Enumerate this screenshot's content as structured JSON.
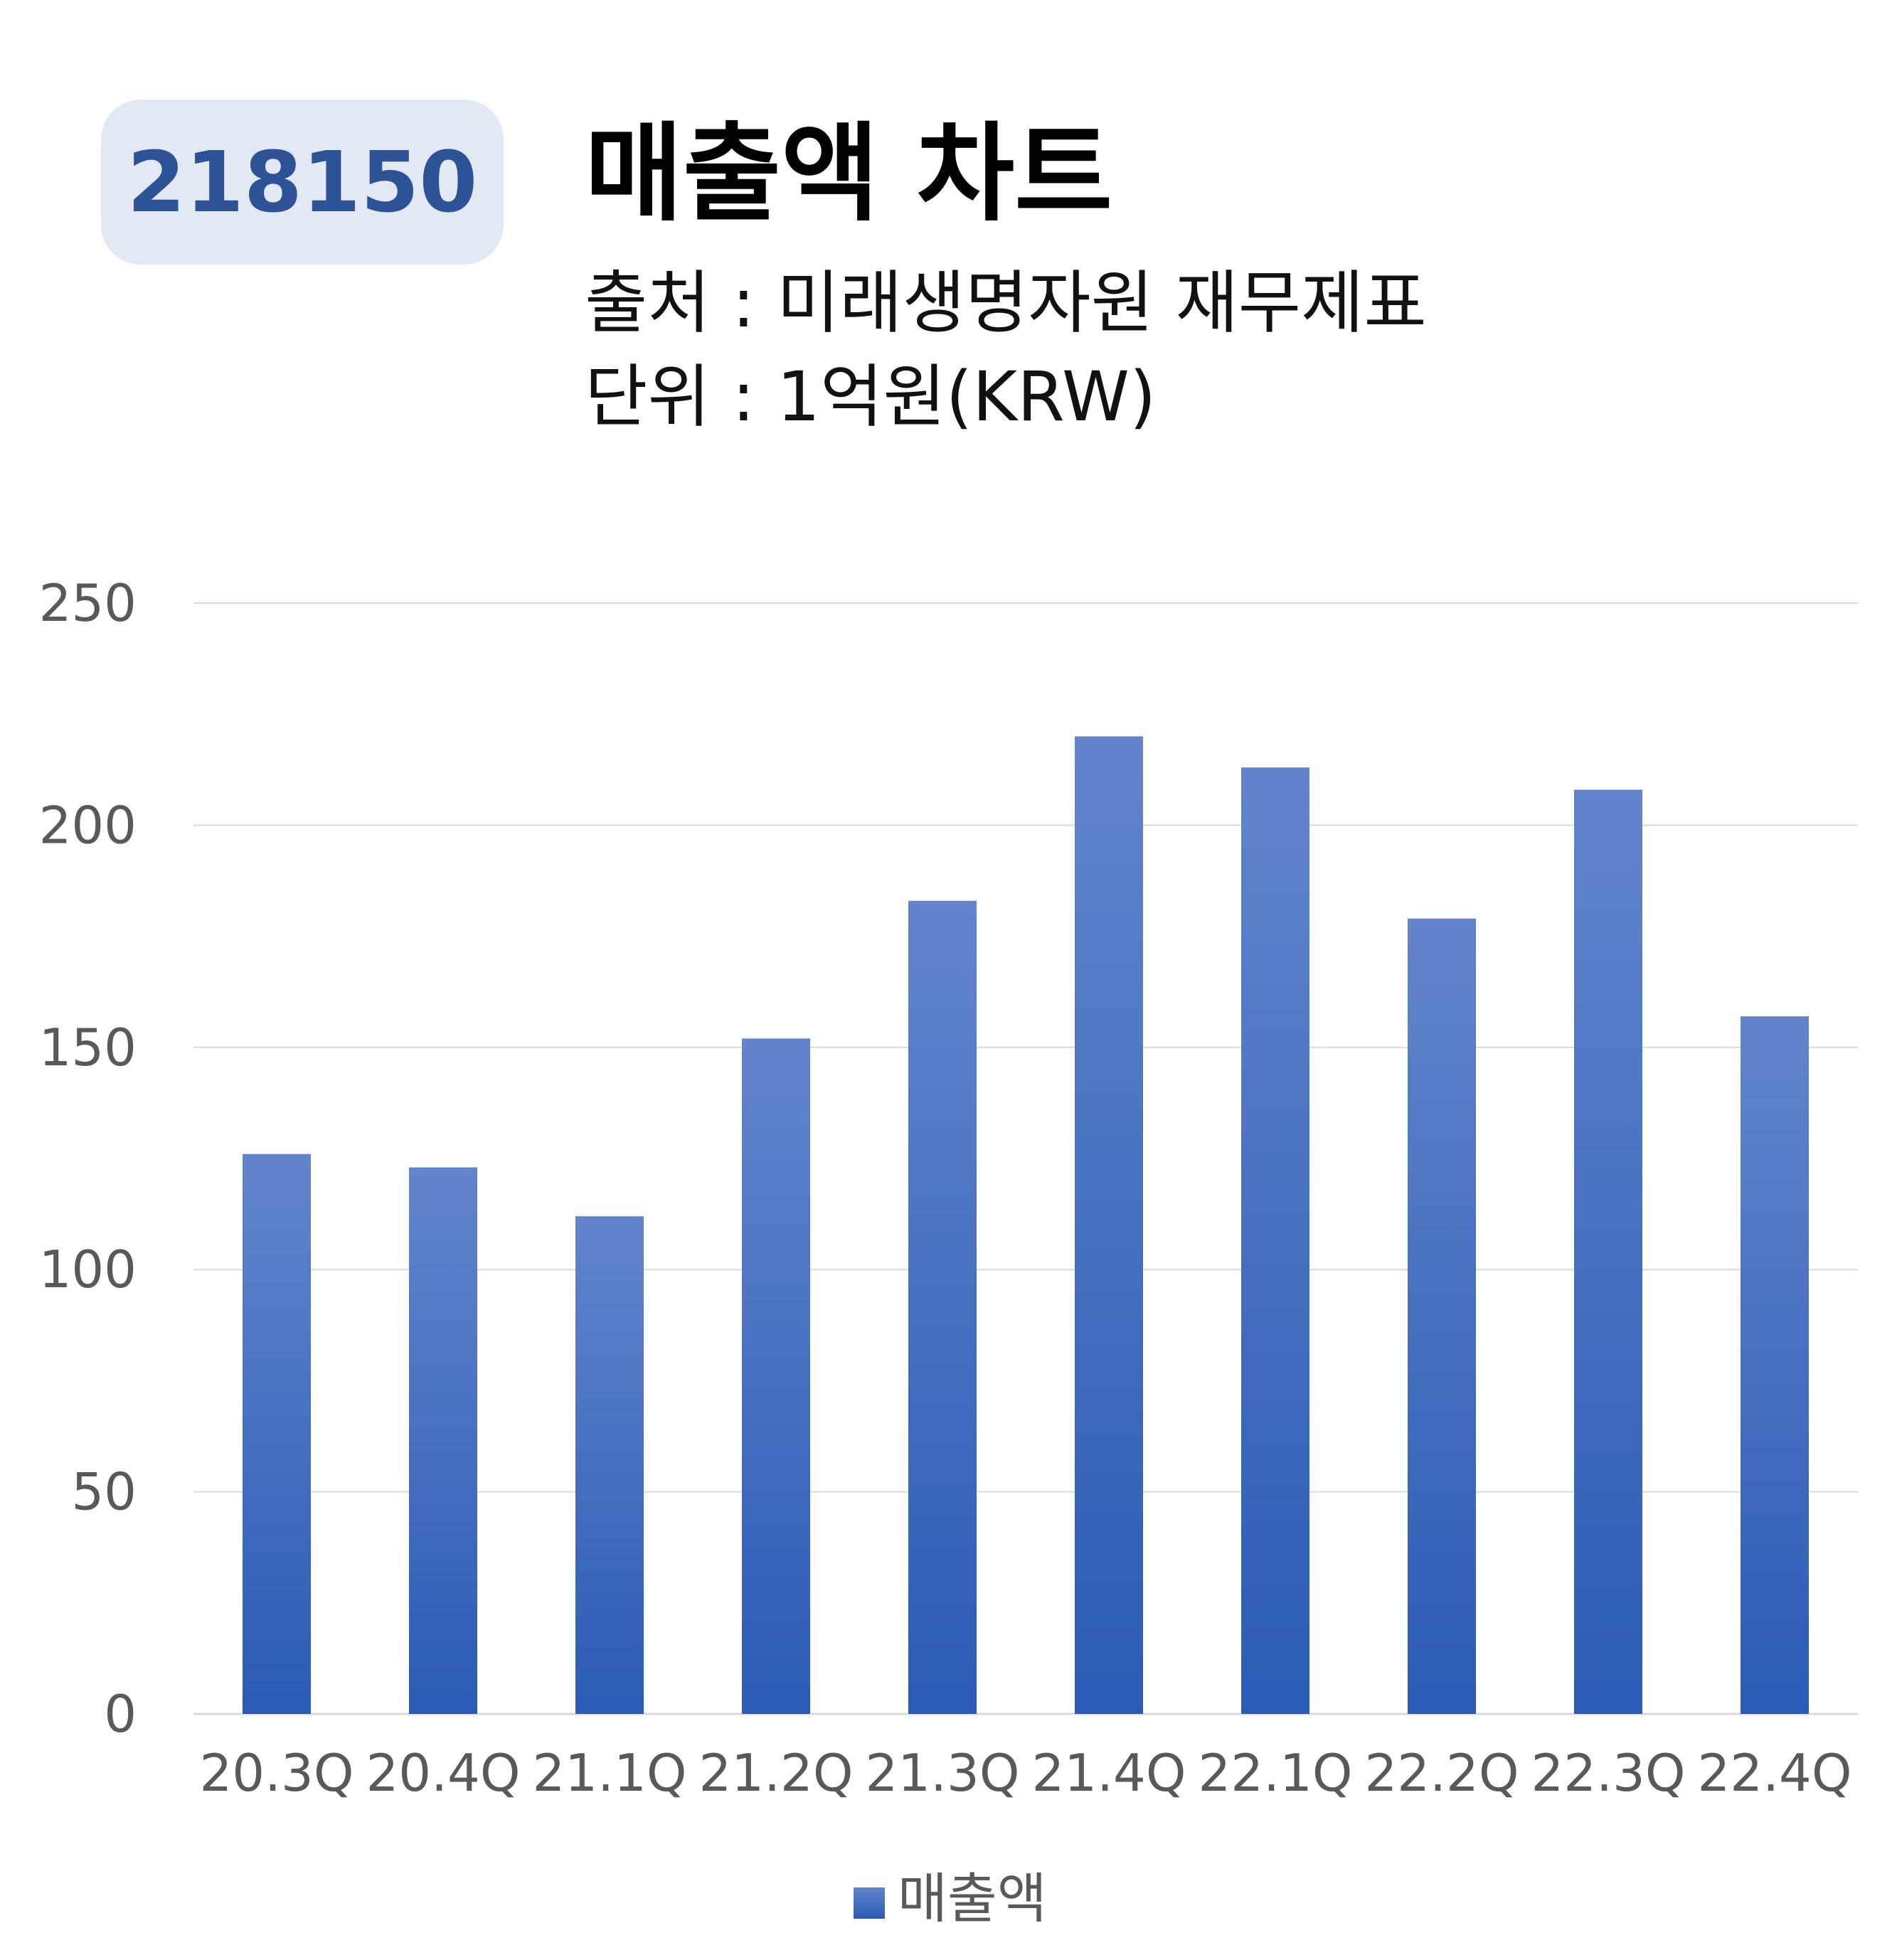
{
  "header": {
    "code": "218150",
    "title": "매출액 차트",
    "source": "출처 : 미래생명자원 재무제표",
    "unit": "단위 : 1억원(KRW)"
  },
  "colors": {
    "bar_top": "#6384cc",
    "bar_bottom": "#2b5bb5",
    "badge_bg": "#e3e8f5",
    "badge_text": "#2d5296",
    "grid": "#d9d9d9"
  },
  "chart_data": {
    "type": "bar",
    "categories": [
      "20.3Q",
      "20.4Q",
      "21.1Q",
      "21.2Q",
      "21.3Q",
      "21.4Q",
      "22.1Q",
      "22.2Q",
      "22.3Q",
      "22.4Q"
    ],
    "series": [
      {
        "name": "매출액",
        "values": [
          126,
          123,
          112,
          152,
          183,
          220,
          213,
          179,
          208,
          157
        ]
      }
    ],
    "ylim": [
      0,
      250
    ],
    "yticks": [
      0,
      50,
      100,
      150,
      200,
      250
    ],
    "grid": true,
    "legend": "bottom"
  }
}
